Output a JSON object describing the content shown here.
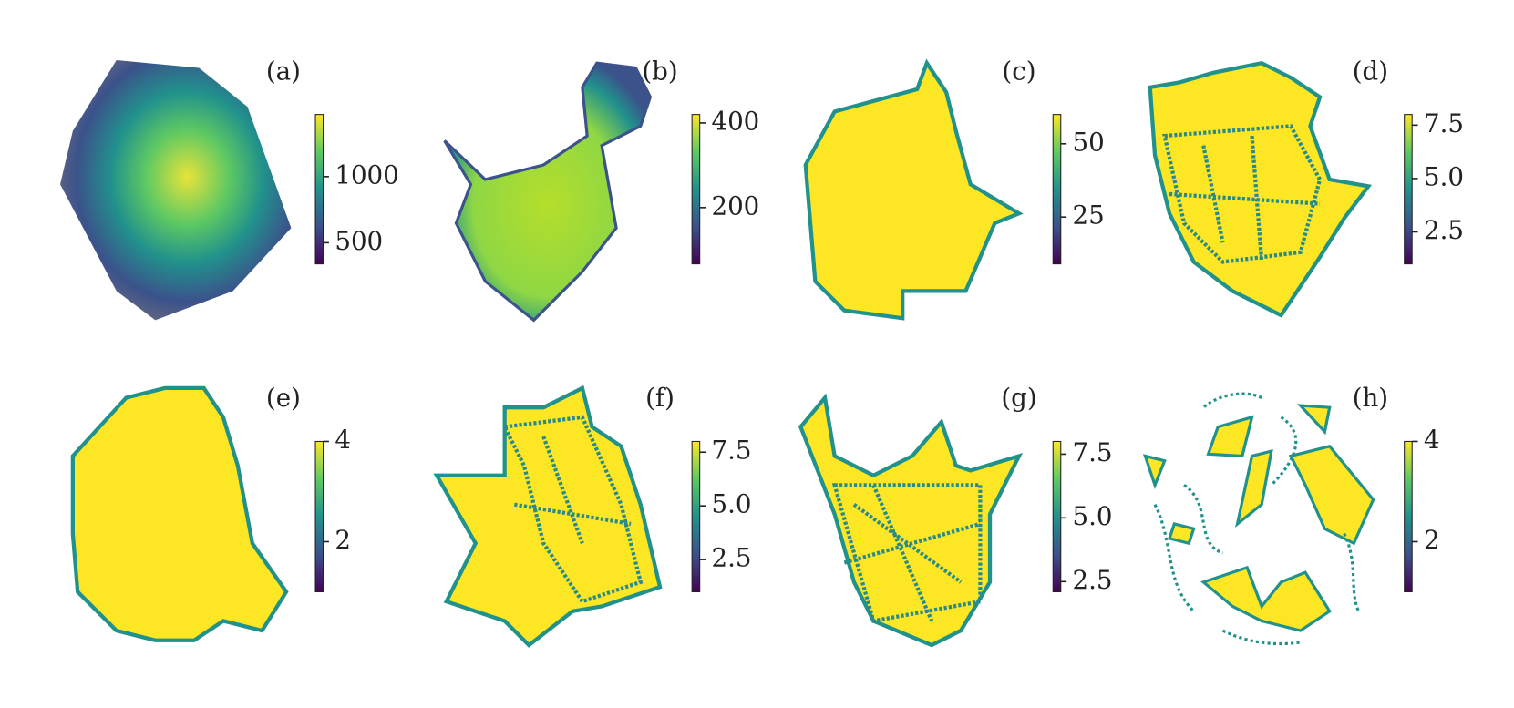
{
  "chart_data": [
    {
      "type": "network",
      "label": "(a)",
      "clim": [
        340,
        1470
      ],
      "cticks": [
        500,
        1000
      ]
    },
    {
      "type": "network",
      "label": "(b)",
      "clim": [
        67,
        420
      ],
      "cticks": [
        200,
        400
      ]
    },
    {
      "type": "network",
      "label": "(c)",
      "clim": [
        9,
        60
      ],
      "cticks": [
        25,
        50
      ]
    },
    {
      "type": "network",
      "label": "(d)",
      "clim": [
        1,
        8
      ],
      "cticks": [
        2.5,
        {
          "value": 5,
          "label": "5.0"
        },
        7.5
      ]
    },
    {
      "type": "network",
      "label": "(e)",
      "clim": [
        1,
        4
      ],
      "cticks": [
        2,
        4
      ]
    },
    {
      "type": "network",
      "label": "(f)",
      "clim": [
        1,
        8
      ],
      "cticks": [
        2.5,
        {
          "value": 5,
          "label": "5.0"
        },
        7.5
      ]
    },
    {
      "type": "network",
      "label": "(g)",
      "clim": [
        2.1,
        8
      ],
      "cticks": [
        2.5,
        {
          "value": 5,
          "label": "5.0"
        },
        7.5
      ]
    },
    {
      "type": "network",
      "label": "(h)",
      "clim": [
        1,
        4
      ],
      "cticks": [
        2,
        4
      ]
    }
  ]
}
